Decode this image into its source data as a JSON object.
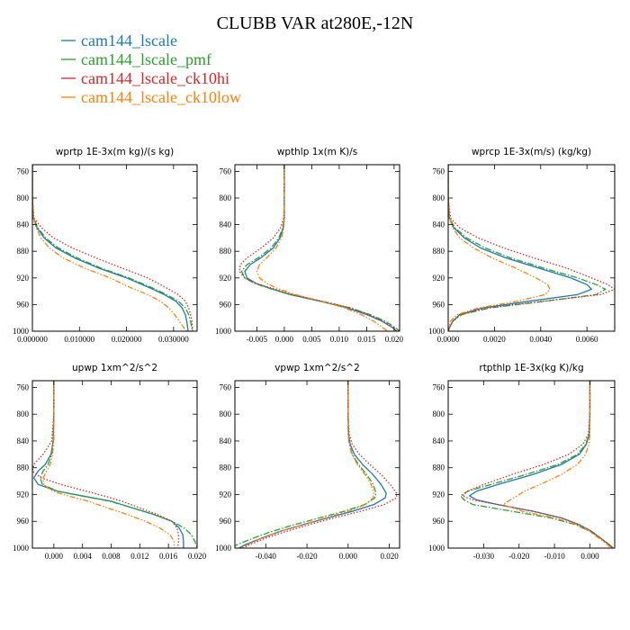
{
  "figure": {
    "title": "CLUBB VAR at280E,-12N"
  },
  "legend": [
    {
      "name": "cam144_lscale",
      "color": "#1f77b4",
      "dash": "solid"
    },
    {
      "name": "cam144_lscale_pmf",
      "color": "#2ca02c",
      "dash": "dashdot"
    },
    {
      "name": "cam144_lscale_ck10hi",
      "color": "#d62728",
      "dash": "dot"
    },
    {
      "name": "cam144_lscale_ck10low",
      "color": "#ff7f0e",
      "dash": "dashdotdot"
    }
  ],
  "chart_data": [
    {
      "type": "line",
      "title": "wprtp  1E-3x(m kg)/(s kg)",
      "xlim": [
        0,
        0.035
      ],
      "ylim": [
        1000,
        750
      ],
      "xticks": [
        0,
        0.01,
        0.02,
        0.03
      ],
      "xtick_labels": [
        "0.000000",
        "0.010000",
        "0.020000",
        "0.030000"
      ],
      "yticks": [
        760,
        800,
        840,
        880,
        920,
        960,
        1000
      ],
      "y": [
        750,
        800,
        830,
        845,
        860,
        875,
        890,
        905,
        920,
        935,
        945,
        955,
        965,
        975,
        985,
        995,
        1000
      ],
      "series": [
        {
          "name": "cam144_lscale",
          "values": [
            0,
            0,
            0.0002,
            0.001,
            0.0025,
            0.005,
            0.009,
            0.014,
            0.02,
            0.025,
            0.028,
            0.0305,
            0.0318,
            0.0325,
            0.0328,
            0.033,
            0.0331
          ]
        },
        {
          "name": "cam144_lscale_pmf",
          "values": [
            0,
            0,
            0.0002,
            0.0012,
            0.0028,
            0.0055,
            0.0095,
            0.0145,
            0.0205,
            0.0255,
            0.0285,
            0.031,
            0.0325,
            0.0332,
            0.0336,
            0.0339,
            0.034
          ]
        },
        {
          "name": "cam144_lscale_ck10hi",
          "values": [
            0,
            0,
            0.0003,
            0.002,
            0.0045,
            0.0085,
            0.0135,
            0.019,
            0.0245,
            0.0285,
            0.031,
            0.0325,
            0.0332,
            0.0336,
            0.0339,
            0.034,
            0.034
          ]
        },
        {
          "name": "cam144_lscale_ck10low",
          "values": [
            0,
            0,
            0.0002,
            0.0008,
            0.0018,
            0.0036,
            0.0065,
            0.011,
            0.0165,
            0.021,
            0.0245,
            0.0272,
            0.029,
            0.0302,
            0.0312,
            0.0322,
            0.0328
          ]
        }
      ]
    },
    {
      "type": "line",
      "title": "wpthlp  1x(m K)/s",
      "xlim": [
        -0.009,
        0.021
      ],
      "ylim": [
        1000,
        750
      ],
      "xticks": [
        -0.005,
        0,
        0.005,
        0.01,
        0.015,
        0.02
      ],
      "xtick_labels": [
        "-0.005",
        "0.000",
        "0.005",
        "0.010",
        "0.015",
        "0.020"
      ],
      "yticks": [
        760,
        800,
        840,
        880,
        920,
        960,
        1000
      ],
      "y": [
        750,
        800,
        830,
        845,
        860,
        875,
        890,
        900,
        910,
        920,
        928,
        935,
        945,
        955,
        965,
        975,
        985,
        995,
        1000
      ],
      "series": [
        {
          "name": "cam144_lscale",
          "values": [
            0,
            0,
            0,
            -0.0002,
            -0.0008,
            -0.002,
            -0.0043,
            -0.0062,
            -0.0072,
            -0.0068,
            -0.0052,
            -0.0028,
            0.001,
            0.0065,
            0.0115,
            0.015,
            0.0178,
            0.0198,
            0.0205
          ]
        },
        {
          "name": "cam144_lscale_pmf",
          "values": [
            0,
            0,
            0,
            -0.0003,
            -0.001,
            -0.0024,
            -0.0048,
            -0.0068,
            -0.0078,
            -0.0072,
            -0.0055,
            -0.003,
            0.001,
            0.0068,
            0.012,
            0.0156,
            0.0184,
            0.0203,
            0.021
          ]
        },
        {
          "name": "cam144_lscale_ck10hi",
          "values": [
            0,
            0,
            -0.0001,
            -0.0007,
            -0.002,
            -0.0042,
            -0.0068,
            -0.008,
            -0.0082,
            -0.0072,
            -0.0052,
            -0.0025,
            0.0015,
            0.007,
            0.012,
            0.0155,
            0.018,
            0.0198,
            0.0205
          ]
        },
        {
          "name": "cam144_lscale_ck10low",
          "values": [
            0,
            0,
            0,
            -0.0001,
            -0.0005,
            -0.0015,
            -0.0032,
            -0.0045,
            -0.005,
            -0.0045,
            -0.0032,
            -0.0015,
            0.002,
            0.0068,
            0.011,
            0.014,
            0.0163,
            0.018,
            0.0188
          ]
        }
      ]
    },
    {
      "type": "line",
      "title": "wprcp  1E-3x(m/s) (kg/kg)",
      "xlim": [
        0,
        0.0072
      ],
      "ylim": [
        1000,
        750
      ],
      "xticks": [
        0,
        0.002,
        0.004,
        0.006
      ],
      "xtick_labels": [
        "0.0000",
        "0.0020",
        "0.0040",
        "0.0060"
      ],
      "yticks": [
        760,
        800,
        840,
        880,
        920,
        960,
        1000
      ],
      "y": [
        750,
        800,
        830,
        845,
        860,
        875,
        890,
        905,
        920,
        930,
        937,
        945,
        955,
        965,
        975,
        985,
        995,
        1000
      ],
      "series": [
        {
          "name": "cam144_lscale",
          "values": [
            0,
            0,
            5e-05,
            0.00025,
            0.0007,
            0.0014,
            0.0025,
            0.0039,
            0.0053,
            0.006,
            0.0062,
            0.0056,
            0.0035,
            0.0015,
            0.0005,
            0.0002,
            5e-05,
            0
          ]
        },
        {
          "name": "cam144_lscale_pmf",
          "values": [
            0,
            0,
            5e-05,
            0.0003,
            0.0008,
            0.0016,
            0.0027,
            0.0041,
            0.0056,
            0.0064,
            0.0068,
            0.0064,
            0.0042,
            0.0018,
            0.0006,
            0.0002,
            5e-05,
            0
          ]
        },
        {
          "name": "cam144_lscale_ck10hi",
          "values": [
            0,
            0,
            0.0001,
            0.0005,
            0.0013,
            0.0024,
            0.0037,
            0.0051,
            0.0062,
            0.0069,
            0.0072,
            0.0066,
            0.0041,
            0.0017,
            0.0005,
            0.0002,
            5e-05,
            0
          ]
        },
        {
          "name": "cam144_lscale_ck10low",
          "values": [
            0,
            0,
            5e-05,
            0.0002,
            0.0005,
            0.0011,
            0.0019,
            0.0029,
            0.0038,
            0.0043,
            0.0044,
            0.0042,
            0.003,
            0.0013,
            0.0004,
            0.0001,
            3e-05,
            0
          ]
        }
      ]
    },
    {
      "type": "line",
      "title": "upwp  1xm^2/s^2",
      "xlim": [
        -0.003,
        0.02
      ],
      "ylim": [
        1000,
        750
      ],
      "xticks": [
        0,
        0.004,
        0.008,
        0.012,
        0.016,
        0.02
      ],
      "xtick_labels": [
        "0.000",
        "0.004",
        "0.008",
        "0.012",
        "0.016",
        "0.020"
      ],
      "yticks": [
        760,
        800,
        840,
        880,
        920,
        960,
        1000
      ],
      "y": [
        750,
        800,
        840,
        860,
        875,
        885,
        895,
        905,
        915,
        922,
        930,
        940,
        950,
        960,
        970,
        980,
        990,
        1000
      ],
      "series": [
        {
          "name": "cam144_lscale",
          "values": [
            0,
            0,
            -0.0001,
            -0.0004,
            -0.0012,
            -0.0022,
            -0.0028,
            -0.0022,
            0.0005,
            0.004,
            0.008,
            0.011,
            0.014,
            0.0165,
            0.0175,
            0.018,
            0.0181,
            0.0181
          ]
        },
        {
          "name": "cam144_lscale_pmf",
          "values": [
            0,
            0,
            -0.0001,
            -0.0003,
            -0.0008,
            -0.0015,
            -0.0019,
            -0.0016,
            0.0005,
            0.0038,
            0.0078,
            0.011,
            0.014,
            0.0165,
            0.0182,
            0.0192,
            0.0197,
            0.02
          ]
        },
        {
          "name": "cam144_lscale_ck10hi",
          "values": [
            0,
            0,
            -0.0003,
            -0.0015,
            -0.0028,
            -0.003,
            -0.0018,
            0.001,
            0.0045,
            0.007,
            0.0095,
            0.012,
            0.0145,
            0.0165,
            0.0172,
            0.0174,
            0.0174,
            0.0173
          ]
        },
        {
          "name": "cam144_lscale_ck10low",
          "values": [
            0,
            0,
            0,
            -0.0002,
            -0.0005,
            -0.001,
            -0.0015,
            -0.0014,
            -0.0002,
            0.002,
            0.0048,
            0.0075,
            0.0103,
            0.0128,
            0.0148,
            0.0162,
            0.0168,
            0.0168
          ]
        }
      ]
    },
    {
      "type": "line",
      "title": "vpwp  1xm^2/s^2",
      "xlim": [
        -0.055,
        0.025
      ],
      "ylim": [
        1000,
        750
      ],
      "xticks": [
        -0.04,
        -0.02,
        0,
        0.02
      ],
      "xtick_labels": [
        "-0.040",
        "-0.020",
        "0.000",
        "0.020"
      ],
      "yticks": [
        760,
        800,
        840,
        880,
        920,
        960,
        1000
      ],
      "y": [
        750,
        800,
        830,
        845,
        860,
        875,
        890,
        905,
        918,
        925,
        935,
        945,
        955,
        965,
        975,
        985,
        995,
        1000
      ],
      "series": [
        {
          "name": "cam144_lscale",
          "values": [
            0,
            0,
            0.0002,
            0.001,
            0.003,
            0.007,
            0.012,
            0.016,
            0.0185,
            0.018,
            0.0125,
            0.002,
            -0.01,
            -0.022,
            -0.033,
            -0.042,
            -0.05,
            -0.053
          ]
        },
        {
          "name": "cam144_lscale_pmf",
          "values": [
            0,
            0,
            0.0001,
            0.0006,
            0.002,
            0.005,
            0.009,
            0.0122,
            0.0135,
            0.013,
            0.008,
            -0.002,
            -0.014,
            -0.026,
            -0.037,
            -0.046,
            -0.054,
            -0.057
          ]
        },
        {
          "name": "cam144_lscale_ck10hi",
          "values": [
            0,
            0,
            0.0005,
            0.002,
            0.0055,
            0.0105,
            0.016,
            0.0205,
            0.0235,
            0.0235,
            0.0175,
            0.006,
            -0.007,
            -0.019,
            -0.03,
            -0.04,
            -0.048,
            -0.051
          ]
        },
        {
          "name": "cam144_lscale_ck10low",
          "values": [
            0,
            0,
            0.0001,
            0.0005,
            0.0018,
            0.0045,
            0.0082,
            0.0112,
            0.0125,
            0.0122,
            0.0085,
            0,
            -0.011,
            -0.022,
            -0.033,
            -0.042,
            -0.049,
            -0.052
          ]
        }
      ]
    },
    {
      "type": "line",
      "title": "rtpthlp  1E-3x(kg K)/kg",
      "xlim": [
        -0.04,
        0.007
      ],
      "ylim": [
        1000,
        750
      ],
      "xticks": [
        -0.03,
        -0.02,
        -0.01,
        0
      ],
      "xtick_labels": [
        "-0.030",
        "-0.020",
        "-0.010",
        "0.000"
      ],
      "yticks": [
        760,
        800,
        840,
        880,
        920,
        960,
        1000
      ],
      "y": [
        750,
        800,
        830,
        845,
        860,
        875,
        890,
        905,
        915,
        922,
        928,
        935,
        945,
        955,
        965,
        975,
        985,
        995,
        1000
      ],
      "series": [
        {
          "name": "cam144_lscale",
          "values": [
            0,
            0,
            -0.0002,
            -0.001,
            -0.003,
            -0.008,
            -0.016,
            -0.026,
            -0.032,
            -0.034,
            -0.032,
            -0.026,
            -0.016,
            -0.008,
            -0.003,
            0.0005,
            0.003,
            0.0055,
            0.0065
          ]
        },
        {
          "name": "cam144_lscale_pmf",
          "values": [
            0,
            0,
            -0.0002,
            -0.0012,
            -0.0035,
            -0.009,
            -0.018,
            -0.028,
            -0.0345,
            -0.0365,
            -0.0355,
            -0.033,
            -0.022,
            -0.011,
            -0.004,
            0,
            0.003,
            0.0055,
            0.0065
          ]
        },
        {
          "name": "cam144_lscale_ck10hi",
          "values": [
            0,
            0,
            -0.0004,
            -0.002,
            -0.006,
            -0.013,
            -0.022,
            -0.03,
            -0.0345,
            -0.036,
            -0.033,
            -0.026,
            -0.016,
            -0.008,
            -0.003,
            0.0005,
            0.003,
            0.0055,
            0.0065
          ]
        },
        {
          "name": "cam144_lscale_ck10low",
          "values": [
            0,
            0,
            0,
            -0.0003,
            -0.0012,
            -0.0035,
            -0.008,
            -0.014,
            -0.0185,
            -0.0205,
            -0.0225,
            -0.0245,
            -0.019,
            -0.01,
            -0.0035,
            0,
            0.0025,
            0.005,
            0.006
          ]
        }
      ]
    }
  ]
}
